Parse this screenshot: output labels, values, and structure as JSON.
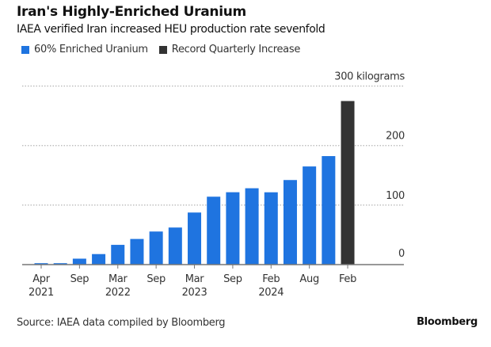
{
  "chart_data": {
    "type": "bar",
    "title": "Iran's Highly-Enriched Uranium",
    "subtitle": "IAEA verified Iran increased HEU production rate sevenfold",
    "ylabel": "kilograms",
    "ylim": [
      0,
      300
    ],
    "y_ticks": [
      {
        "value": 0,
        "label": "0"
      },
      {
        "value": 100,
        "label": "100"
      },
      {
        "value": 200,
        "label": "200"
      },
      {
        "value": 300,
        "label": "300 kilograms"
      }
    ],
    "x_ticks": [
      {
        "bar_index": 0,
        "month": "Apr",
        "year": "2021"
      },
      {
        "bar_index": 2,
        "month": "Sep",
        "year": ""
      },
      {
        "bar_index": 4,
        "month": "Mar",
        "year": "2022"
      },
      {
        "bar_index": 6,
        "month": "Sep",
        "year": ""
      },
      {
        "bar_index": 8,
        "month": "Mar",
        "year": "2023"
      },
      {
        "bar_index": 10,
        "month": "Sep",
        "year": ""
      },
      {
        "bar_index": 12,
        "month": "Feb",
        "year": "2024"
      },
      {
        "bar_index": 14,
        "month": "Aug",
        "year": ""
      },
      {
        "bar_index": 16,
        "month": "Feb",
        "year": ""
      }
    ],
    "series": [
      {
        "name": "60% Enriched Uranium",
        "color": "#1f74e0",
        "values": [
          2.4,
          2.4,
          10,
          17.7,
          33.2,
          43.1,
          55.6,
          62.3,
          87.5,
          114.1,
          121.6,
          128.3,
          121.5,
          142.1,
          164.9,
          182.3,
          null
        ]
      },
      {
        "name": "Record Quarterly Increase",
        "color": "#333333",
        "values": [
          null,
          null,
          null,
          null,
          null,
          null,
          null,
          null,
          null,
          null,
          null,
          null,
          null,
          null,
          null,
          null,
          274.8
        ]
      }
    ],
    "grid": true,
    "legend_position": "top-left"
  },
  "source": "Source: IAEA data compiled by Bloomberg",
  "brand": "Bloomberg"
}
